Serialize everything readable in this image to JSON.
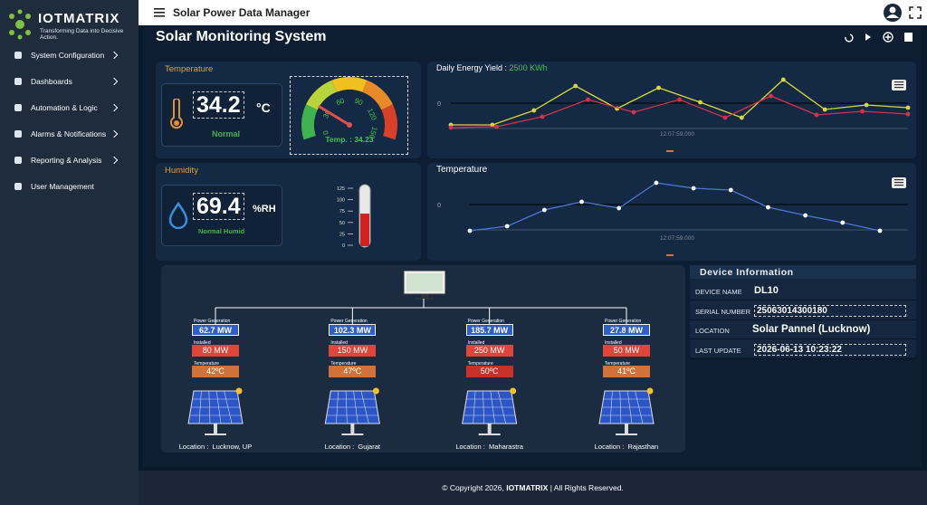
{
  "brand": {
    "name": "IOTMATRIX",
    "tagline": "Transforming Data into Decisive Action."
  },
  "menu": [
    "System Configuration",
    "Dashboards",
    "Automation & Logic",
    "Alarms & Notifications",
    "Reporting & Analysis",
    "User Management"
  ],
  "header": {
    "title": "Solar Power Data Manager"
  },
  "page_title": "Solar Monitoring System",
  "temperature_card": {
    "title": "Temperature",
    "reading": "34.2",
    "unit": "°C",
    "status": "Normal"
  },
  "gauge": {
    "ticks": [
      0,
      30,
      60,
      90,
      120,
      150
    ],
    "value": 34.23,
    "value_label": "Temp. : 34.23"
  },
  "humidity_card": {
    "title": "Humidity",
    "reading": "69.4",
    "unit": "%RH",
    "status": "Normal Humid"
  },
  "humidity_bar": {
    "ticks": [
      125,
      100,
      75,
      50,
      25,
      0
    ],
    "value": 69.4
  },
  "energy_chart": {
    "type": "line",
    "title": "Daily Energy Yield : ",
    "total": "2500 KWh",
    "x_label": "12:07:59.000",
    "ylim": [
      -3.6,
      2.9
    ],
    "yticks": [
      0
    ],
    "series": [
      {
        "color": "#d8d83a",
        "values": [
          -2.4,
          -2.4,
          -0.8,
          1.9,
          -0.6,
          1.7,
          0.1,
          -1.6,
          2.6,
          -0.7,
          -0.2,
          -0.5
        ]
      },
      {
        "color": "#d8304a",
        "values": [
          -2.7,
          -2.6,
          -1.5,
          0.4,
          -1.0,
          0.4,
          -1.6,
          0.8,
          -1.3,
          -0.9,
          -1.2
        ]
      }
    ]
  },
  "temperature_chart": {
    "type": "line",
    "title": "Temperature",
    "x_label": "12:07:59.000",
    "ylim": [
      -3.6,
      3.0
    ],
    "yticks": [
      0
    ],
    "series": [
      {
        "color": "#4a78d8",
        "values": [
          -2.9,
          -2.4,
          -0.6,
          0.3,
          -0.4,
          2.4,
          1.8,
          1.6,
          -0.3,
          -1.2,
          -2.0,
          -2.9
        ]
      }
    ]
  },
  "plants": [
    {
      "power_label": "Power Generation",
      "power": "62.7 MW",
      "installed_label": "Installed",
      "installed": "80 MW",
      "temp_label": "Temperature",
      "temp": "42ºC",
      "temp_color": "#d0733a",
      "location": "Location :  Lucknow, UP"
    },
    {
      "power_label": "Power Generation",
      "power": "102.3 MW",
      "installed_label": "Installed",
      "installed": "150 MW",
      "temp_label": "Temperature",
      "temp": "47ºC",
      "temp_color": "#d0733a",
      "location": "Location :  Gujarat"
    },
    {
      "power_label": "Power Generation",
      "power": "185.7 MW",
      "installed_label": "Installed",
      "installed": "250 MW",
      "temp_label": "Temperature",
      "temp": "50ºC",
      "temp_color": "#c8302a",
      "location": "Location :  Maharastra"
    },
    {
      "power_label": "Power Generation",
      "power": "27.8 MW",
      "installed_label": "Installed",
      "installed": "50 MW",
      "temp_label": "Temperature",
      "temp": "41ºC",
      "temp_color": "#d0733a",
      "location": "Location :  Rajasthan"
    }
  ],
  "device_info": {
    "title": "Device Information",
    "rows": [
      [
        "DEVICE NAME",
        "DL10"
      ],
      [
        "SERIAL NUMBER",
        "25063014300180"
      ],
      [
        "LOCATION",
        "Solar Pannel (Lucknow)"
      ],
      [
        "LAST UPDATE",
        "2026-06-13 10:23:22"
      ]
    ]
  },
  "footer": {
    "prefix": "© Copyright 2026, ",
    "brand": "IOTMATRIX",
    "suffix": " | All Rights Reserved."
  }
}
